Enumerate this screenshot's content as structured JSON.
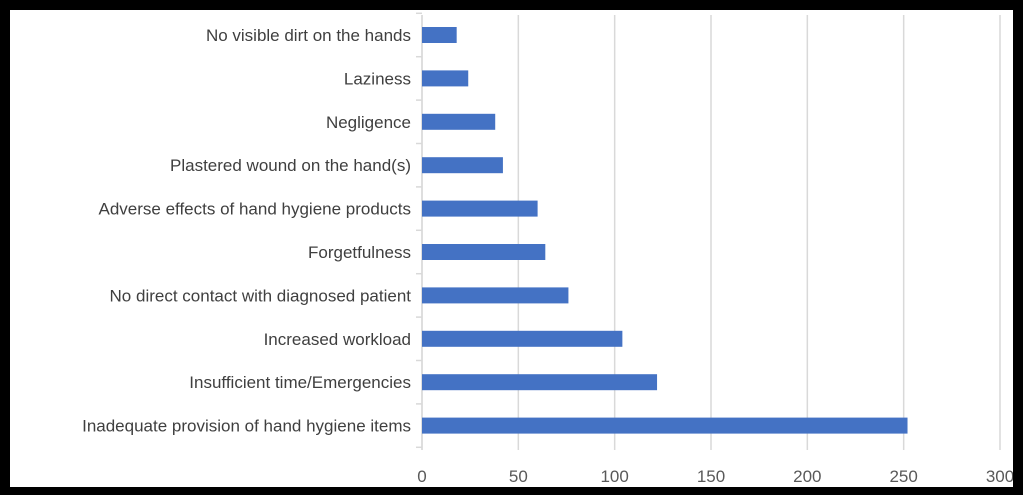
{
  "chart_data": {
    "type": "bar",
    "orientation": "horizontal",
    "categories": [
      "No visible dirt on the hands",
      "Laziness",
      "Negligence",
      "Plastered wound on the hand(s)",
      "Adverse effects of hand hygiene products",
      "Forgetfulness",
      "No direct contact with diagnosed patient",
      "Increased workload",
      "Insufficient time/Emergencies",
      "Inadequate provision of hand hygiene items"
    ],
    "values": [
      18,
      24,
      38,
      42,
      60,
      64,
      76,
      104,
      122,
      252
    ],
    "xlim": [
      0,
      300
    ],
    "xticks": [
      "0",
      "50",
      "100",
      "150",
      "200",
      "250",
      "300"
    ],
    "grid": "vertical",
    "bar_color": "#4472c4",
    "grid_color": "#d9d9d9"
  }
}
